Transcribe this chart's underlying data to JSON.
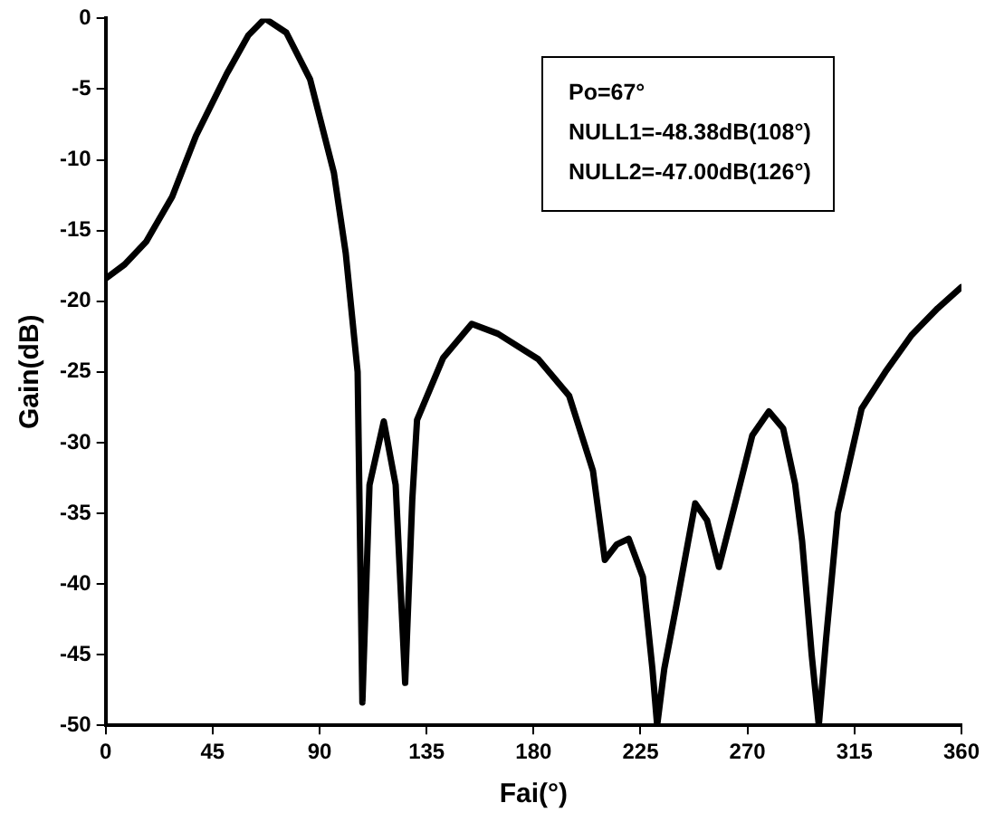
{
  "chart_data": {
    "type": "line",
    "xlabel": "Fai(°)",
    "ylabel": "Gain(dB)",
    "annotations": [
      "Po=67°",
      "NULL1=-48.38dB(108°)",
      "NULL2=-47.00dB(126°)"
    ],
    "xlim": [
      0,
      360
    ],
    "xticks": [
      0,
      45,
      90,
      135,
      180,
      225,
      270,
      315,
      360
    ],
    "ylim": [
      -50,
      0
    ],
    "yticks": [
      0,
      -5,
      -10,
      -15,
      -20,
      -25,
      -30,
      -35,
      -40,
      -45,
      -50
    ],
    "grid": false,
    "legend": false,
    "marker": "none",
    "line_style": "solid",
    "series": [
      {
        "color": "#000000",
        "x": [
          0,
          8,
          17,
          28,
          38,
          51,
          60,
          67,
          76,
          86,
          96,
          101,
          106,
          108,
          111,
          117,
          122,
          126,
          129,
          131,
          142,
          154,
          165,
          182,
          195,
          205,
          210,
          215,
          220,
          226,
          230,
          232,
          235,
          240,
          248,
          253,
          258,
          265,
          272,
          279,
          285,
          290,
          293,
          297,
          300,
          303,
          308,
          318,
          328,
          339,
          350,
          360
        ],
        "values": [
          -18.4,
          -17.4,
          -15.8,
          -12.6,
          -8.3,
          -3.9,
          -1.2,
          0,
          -1.0,
          -4.3,
          -10.9,
          -16.6,
          -25,
          -48.38,
          -33,
          -28.5,
          -33,
          -47,
          -34,
          -28.4,
          -24,
          -21.6,
          -22.3,
          -24.1,
          -26.7,
          -32,
          -38.3,
          -37.2,
          -36.8,
          -39.5,
          -46,
          -50,
          -46,
          -41.6,
          -34.3,
          -35.5,
          -38.8,
          -34.2,
          -29.5,
          -27.8,
          -29,
          -32.9,
          -37,
          -45,
          -50,
          -44,
          -35,
          -27.6,
          -25,
          -22.4,
          -20.5,
          -19
        ]
      }
    ]
  }
}
